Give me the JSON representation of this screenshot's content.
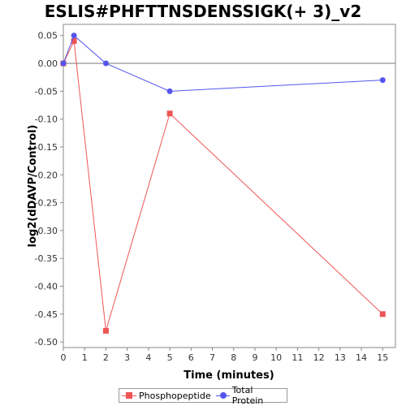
{
  "chart_data": {
    "type": "line",
    "title": "ESLIS#PHFTTNSDENSSIGK(+ 3)_v2",
    "xlabel": "Time (minutes)",
    "ylabel": "log2(dDAVP/Control)",
    "xlim": [
      0,
      15.6
    ],
    "ylim": [
      -0.51,
      0.07
    ],
    "x_ticks": [
      0,
      1,
      2,
      3,
      4,
      5,
      6,
      7,
      8,
      9,
      10,
      11,
      12,
      13,
      14,
      15
    ],
    "y_ticks": [
      0.05,
      0.0,
      -0.05,
      -0.1,
      -0.15,
      -0.2,
      -0.25,
      -0.3,
      -0.35,
      -0.4,
      -0.45,
      -0.5
    ],
    "y_tick_labels": [
      "0.05",
      "0.00",
      "-0.05",
      "-0.10",
      "-0.15",
      "-0.20",
      "-0.25",
      "-0.30",
      "-0.35",
      "-0.40",
      "-0.45",
      "-0.50"
    ],
    "zero_line": true,
    "grid": false,
    "legend_position": "bottom",
    "series": [
      {
        "name": "Phosphopeptide",
        "color": "#ee5555",
        "marker": "square",
        "x": [
          0,
          0.5,
          2,
          5,
          15
        ],
        "y": [
          0.0,
          0.04,
          -0.48,
          -0.09,
          -0.45
        ]
      },
      {
        "name": "Total Protein",
        "color": "#5555ee",
        "marker": "circle",
        "x": [
          0,
          0.5,
          2,
          5,
          15
        ],
        "y": [
          0.0,
          0.05,
          0.0,
          -0.05,
          -0.03
        ]
      }
    ]
  }
}
